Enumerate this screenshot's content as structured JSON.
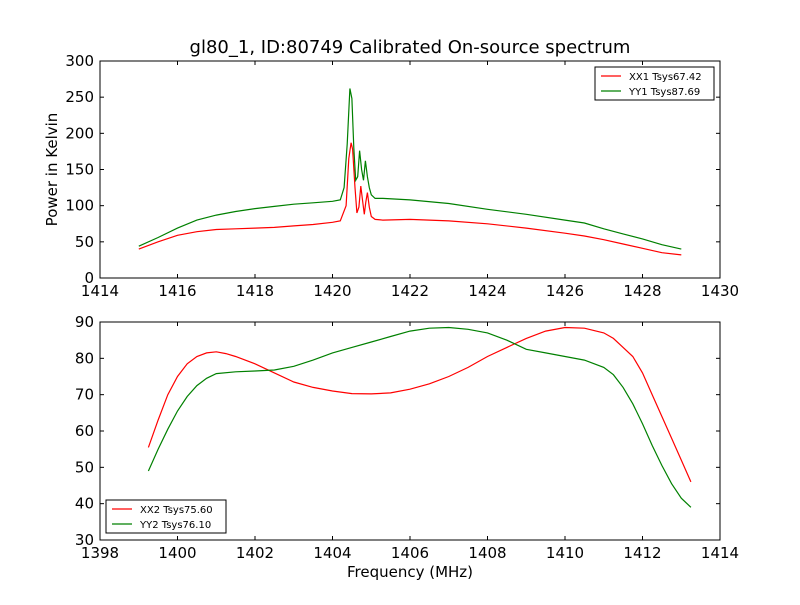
{
  "figure": {
    "title": "gl80_1, ID:80749 Calibrated On-source spectrum"
  },
  "chart_data": [
    {
      "type": "line",
      "xlabel": "",
      "ylabel": "Power in Kelvin",
      "xlim": [
        1414,
        1430
      ],
      "ylim": [
        0,
        300
      ],
      "xticks": [
        "1414",
        "1416",
        "1418",
        "1420",
        "1422",
        "1424",
        "1426",
        "1428",
        "1430"
      ],
      "yticks": [
        "0",
        "50",
        "100",
        "150",
        "200",
        "250",
        "300"
      ],
      "grid": false,
      "legend_position": "top-right",
      "series": [
        {
          "name": "XX1 Tsys67.42",
          "color": "#ff0000",
          "x": [
            1415.0,
            1415.5,
            1416.0,
            1416.5,
            1417.0,
            1417.5,
            1418.0,
            1418.5,
            1419.0,
            1419.5,
            1420.0,
            1420.2,
            1420.35,
            1420.42,
            1420.48,
            1420.52,
            1420.58,
            1420.63,
            1420.68,
            1420.73,
            1420.77,
            1420.82,
            1420.86,
            1420.9,
            1420.95,
            1421.0,
            1421.1,
            1421.3,
            1422.0,
            1423.0,
            1424.0,
            1425.0,
            1426.0,
            1426.5,
            1427.0,
            1427.5,
            1428.0,
            1428.5,
            1429.0
          ],
          "values": [
            40,
            50,
            59,
            64,
            67,
            68,
            69,
            70,
            72,
            74,
            77,
            79,
            100,
            165,
            187,
            178,
            125,
            90,
            98,
            127,
            110,
            88,
            105,
            118,
            98,
            85,
            81,
            80,
            81,
            79,
            75,
            69,
            62,
            58,
            53,
            47,
            41,
            35,
            32
          ]
        },
        {
          "name": "YY1 Tsys87.69",
          "color": "#008000",
          "x": [
            1415.0,
            1415.5,
            1416.0,
            1416.5,
            1417.0,
            1417.5,
            1418.0,
            1418.5,
            1419.0,
            1419.5,
            1420.0,
            1420.2,
            1420.3,
            1420.38,
            1420.45,
            1420.5,
            1420.55,
            1420.6,
            1420.65,
            1420.7,
            1420.75,
            1420.8,
            1420.85,
            1420.9,
            1420.95,
            1421.0,
            1421.1,
            1421.3,
            1422.0,
            1423.0,
            1424.0,
            1425.0,
            1426.0,
            1426.5,
            1427.0,
            1427.5,
            1428.0,
            1428.5,
            1429.0
          ],
          "values": [
            44,
            56,
            69,
            80,
            87,
            92,
            96,
            99,
            102,
            104,
            106,
            108,
            125,
            185,
            262,
            248,
            180,
            135,
            140,
            176,
            150,
            135,
            162,
            140,
            125,
            115,
            110,
            110,
            108,
            103,
            95,
            88,
            80,
            76,
            68,
            61,
            54,
            46,
            40
          ]
        }
      ]
    },
    {
      "type": "line",
      "xlabel": "Frequency (MHz)",
      "ylabel": "",
      "xlim": [
        1398,
        1414
      ],
      "ylim": [
        30,
        90
      ],
      "xticks": [
        "1398",
        "1400",
        "1402",
        "1404",
        "1406",
        "1408",
        "1410",
        "1412",
        "1414"
      ],
      "yticks": [
        "30",
        "40",
        "50",
        "60",
        "70",
        "80",
        "90"
      ],
      "grid": false,
      "legend_position": "bottom-left",
      "series": [
        {
          "name": "XX2 Tsys75.60",
          "color": "#ff0000",
          "x": [
            1399.25,
            1399.5,
            1399.75,
            1400.0,
            1400.25,
            1400.5,
            1400.75,
            1401.0,
            1401.25,
            1401.5,
            1402.0,
            1402.5,
            1403.0,
            1403.5,
            1404.0,
            1404.5,
            1405.0,
            1405.5,
            1406.0,
            1406.5,
            1407.0,
            1407.5,
            1408.0,
            1408.5,
            1409.0,
            1409.5,
            1410.0,
            1410.5,
            1411.0,
            1411.25,
            1411.5,
            1411.75,
            1412.0,
            1412.25,
            1412.5,
            1412.75,
            1413.0,
            1413.25
          ],
          "values": [
            55.5,
            63.0,
            70.0,
            75.0,
            78.5,
            80.5,
            81.5,
            81.8,
            81.3,
            80.5,
            78.5,
            76.0,
            73.5,
            72.0,
            71.0,
            70.3,
            70.2,
            70.5,
            71.5,
            73.0,
            75.0,
            77.5,
            80.5,
            83.0,
            85.5,
            87.5,
            88.5,
            88.3,
            87.0,
            85.5,
            83.0,
            80.5,
            76.0,
            70.0,
            64.0,
            58.0,
            52.0,
            46.0
          ]
        },
        {
          "name": "YY2 Tsys76.10",
          "color": "#008000",
          "x": [
            1399.25,
            1399.5,
            1399.75,
            1400.0,
            1400.25,
            1400.5,
            1400.75,
            1401.0,
            1401.5,
            1402.0,
            1402.5,
            1403.0,
            1403.5,
            1404.0,
            1404.5,
            1405.0,
            1405.5,
            1406.0,
            1406.5,
            1407.0,
            1407.5,
            1408.0,
            1408.5,
            1409.0,
            1409.5,
            1410.0,
            1410.5,
            1411.0,
            1411.25,
            1411.5,
            1411.75,
            1412.0,
            1412.25,
            1412.5,
            1412.75,
            1413.0,
            1413.25
          ],
          "values": [
            49.0,
            55.0,
            60.5,
            65.5,
            69.5,
            72.5,
            74.5,
            75.8,
            76.3,
            76.5,
            76.8,
            77.8,
            79.5,
            81.5,
            83.0,
            84.5,
            86.0,
            87.5,
            88.3,
            88.5,
            88.0,
            87.0,
            85.0,
            82.5,
            81.5,
            80.5,
            79.5,
            77.5,
            75.5,
            72.0,
            67.5,
            62.0,
            56.0,
            50.5,
            45.5,
            41.5,
            39.0
          ]
        }
      ]
    }
  ]
}
